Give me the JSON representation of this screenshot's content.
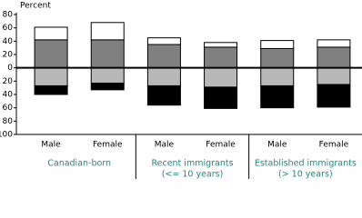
{
  "chart_data": {
    "type": "diverging-stacked-bar",
    "y_label": "Percent",
    "categories": [
      "Male",
      "Female",
      "Male",
      "Female",
      "Male",
      "Female"
    ],
    "groups": [
      [
        "Canadian-born"
      ],
      [
        "Recent immigrants",
        "(<= 10 years)"
      ],
      [
        "Established immigrants",
        "(> 10 years)"
      ]
    ],
    "series": [
      {
        "color": "#808080",
        "values": [
          42,
          42,
          35,
          31,
          29,
          31
        ]
      },
      {
        "color": "#ffffff",
        "values": [
          19,
          26,
          10,
          7,
          12,
          11
        ]
      },
      {
        "color": "#b8b8b8",
        "values": [
          -27,
          -23,
          -27,
          -29,
          -27,
          -25
        ]
      },
      {
        "color": "#000000",
        "values": [
          -13,
          -10,
          -29,
          -32,
          -33,
          -34
        ]
      }
    ],
    "ylim": [
      -100,
      80
    ],
    "yticks": [
      {
        "value": -100,
        "label": "100"
      },
      {
        "value": -80,
        "label": "80"
      },
      {
        "value": -60,
        "label": "60"
      },
      {
        "value": -40,
        "label": "40"
      },
      {
        "value": -20,
        "label": "20"
      },
      0,
      20,
      40,
      60,
      80
    ],
    "grid": false
  }
}
